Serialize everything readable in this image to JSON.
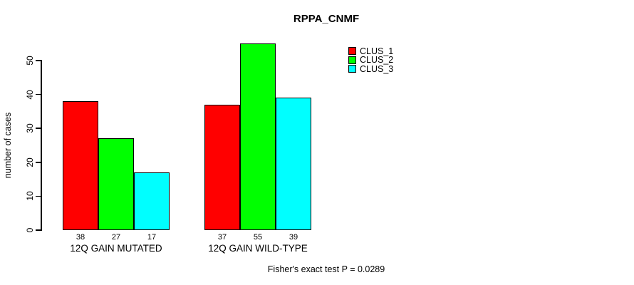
{
  "chart_data": {
    "type": "bar",
    "title": "RPPA_CNMF",
    "xlabel": "",
    "ylabel": "number of cases",
    "yticks": [
      0,
      10,
      20,
      30,
      40,
      50
    ],
    "ylim": [
      0,
      55
    ],
    "grid": false,
    "legend_position": "top-right",
    "categories": [
      "12Q GAIN MUTATED",
      "12Q GAIN WILD-TYPE"
    ],
    "series": [
      {
        "name": "CLUS_1",
        "color": "#FF0000",
        "values": [
          38,
          37
        ]
      },
      {
        "name": "CLUS_2",
        "color": "#00FF00",
        "values": [
          27,
          55
        ]
      },
      {
        "name": "CLUS_3",
        "color": "#00FFFF",
        "values": [
          17,
          39
        ]
      }
    ],
    "bar_value_labels": [
      [
        38,
        27,
        17
      ],
      [
        37,
        55,
        39
      ]
    ],
    "annotation": "Fisher's exact test P = 0.0289"
  },
  "colors": {
    "background": "#FFFFFF",
    "axis": "#000000",
    "text": "#000000"
  }
}
